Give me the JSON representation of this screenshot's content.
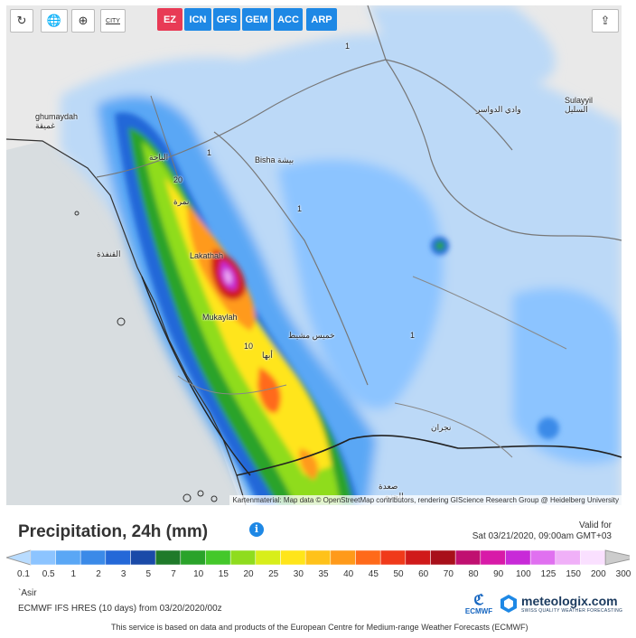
{
  "toolbar": {
    "refresh_icon": "refresh-icon",
    "globe_icon": "globe-icon",
    "zoom_icon": "zoom-icon",
    "city_label": "CITY",
    "share_icon": "share-icon"
  },
  "models": [
    {
      "label": "EZ",
      "color": "#e83a55",
      "active": true
    },
    {
      "label": "ICN",
      "color": "#1e88e5",
      "active": false
    },
    {
      "label": "GFS",
      "color": "#1e88e5",
      "active": false
    },
    {
      "label": "GEM",
      "color": "#1e88e5",
      "active": false
    },
    {
      "label": "ACC",
      "color": "#1e88e5",
      "active": false
    },
    {
      "label": "ARP",
      "color": "#1e88e5",
      "active": false
    }
  ],
  "places": [
    {
      "label": "ghumaydah\nغميقة"
    },
    {
      "label": "الباحة"
    },
    {
      "label": "Bisha بيشة"
    },
    {
      "label": "وادي الدواسر"
    },
    {
      "label": "Sulayyil\nالسليل"
    },
    {
      "label": "نمرة"
    },
    {
      "label": "القنفذة"
    },
    {
      "label": "Lakathah"
    },
    {
      "label": "Mukaylah"
    },
    {
      "label": "خميس مشيط"
    },
    {
      "label": "أبها"
    },
    {
      "label": "نجران"
    },
    {
      "label": "صعدة"
    },
    {
      "label": "الحزم"
    }
  ],
  "contour_labels": [
    "1",
    "20",
    "1",
    "10",
    "1",
    "1"
  ],
  "attribution": "Kartenmaterial: Map data © OpenStreetMap contributors, rendering GIScience Research Group @ Heidelberg University",
  "legend": {
    "title": "Precipitation, 24h (mm)",
    "info_icon": "i",
    "valid_label": "Valid for",
    "valid_date": "Sat 03/21/2020, 09:00am GMT+03",
    "ticks": [
      "0.1",
      "0.5",
      "1",
      "2",
      "3",
      "5",
      "7",
      "10",
      "15",
      "20",
      "25",
      "30",
      "35",
      "40",
      "45",
      "50",
      "60",
      "70",
      "80",
      "90",
      "100",
      "125",
      "150",
      "200",
      "300"
    ],
    "colors": [
      "#b9dcff",
      "#8cc4ff",
      "#5aa7f5",
      "#3b8ae8",
      "#2468d8",
      "#1a4aa8",
      "#1f7a2a",
      "#2aa32a",
      "#44c82a",
      "#8fdc1e",
      "#d8ee1a",
      "#ffe51a",
      "#ffc21a",
      "#ff9a1a",
      "#ff6a1a",
      "#f03a1a",
      "#d01a1a",
      "#a8101a",
      "#c01070",
      "#d81aa8",
      "#c82ad8",
      "#e070f0",
      "#f0b0f8",
      "#fae0ff",
      "#cccccc"
    ]
  },
  "region": "`Asir",
  "run_info": "ECMWF IFS HRES (10 days) from 03/20/2020/00z",
  "footer_note": "This service is based on data and products of the European Centre for Medium-range Weather Forecasts (ECMWF)",
  "ecmwf_label": "ECMWF",
  "brand": {
    "name": "meteologix.com",
    "tagline": "SWISS QUALITY WEATHER FORECASTING"
  }
}
